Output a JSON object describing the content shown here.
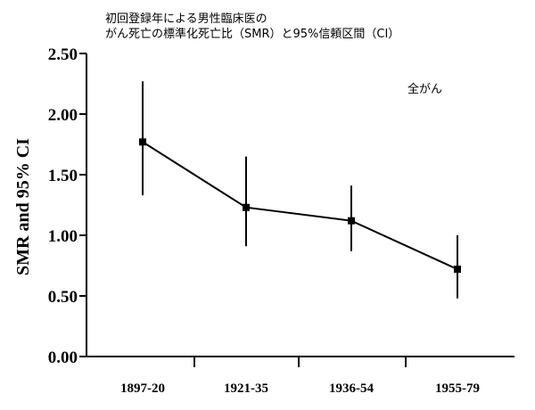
{
  "chart_data": {
    "type": "line",
    "title_lines": [
      "初回登録年による男性臨床医の",
      "がん死亡の標準化死亡比（SMR）と95%信頼区間（CI）"
    ],
    "ylabel": "SMR and 95% CI",
    "xlabel": "",
    "annotation": "全がん",
    "categories": [
      "1897-20",
      "1921-35",
      "1936-54",
      "1955-79"
    ],
    "series": [
      {
        "values": [
          1.77,
          1.23,
          1.12,
          0.72
        ],
        "ci_low": [
          1.33,
          0.91,
          0.87,
          0.48
        ],
        "ci_high": [
          2.27,
          1.65,
          1.41,
          1.0
        ]
      }
    ],
    "ylim": [
      0,
      2.5
    ],
    "yticks": [
      "0.00",
      "0.50",
      "1.00",
      "1.50",
      "2.00",
      "2.50"
    ],
    "grid": false,
    "legend": "none"
  }
}
